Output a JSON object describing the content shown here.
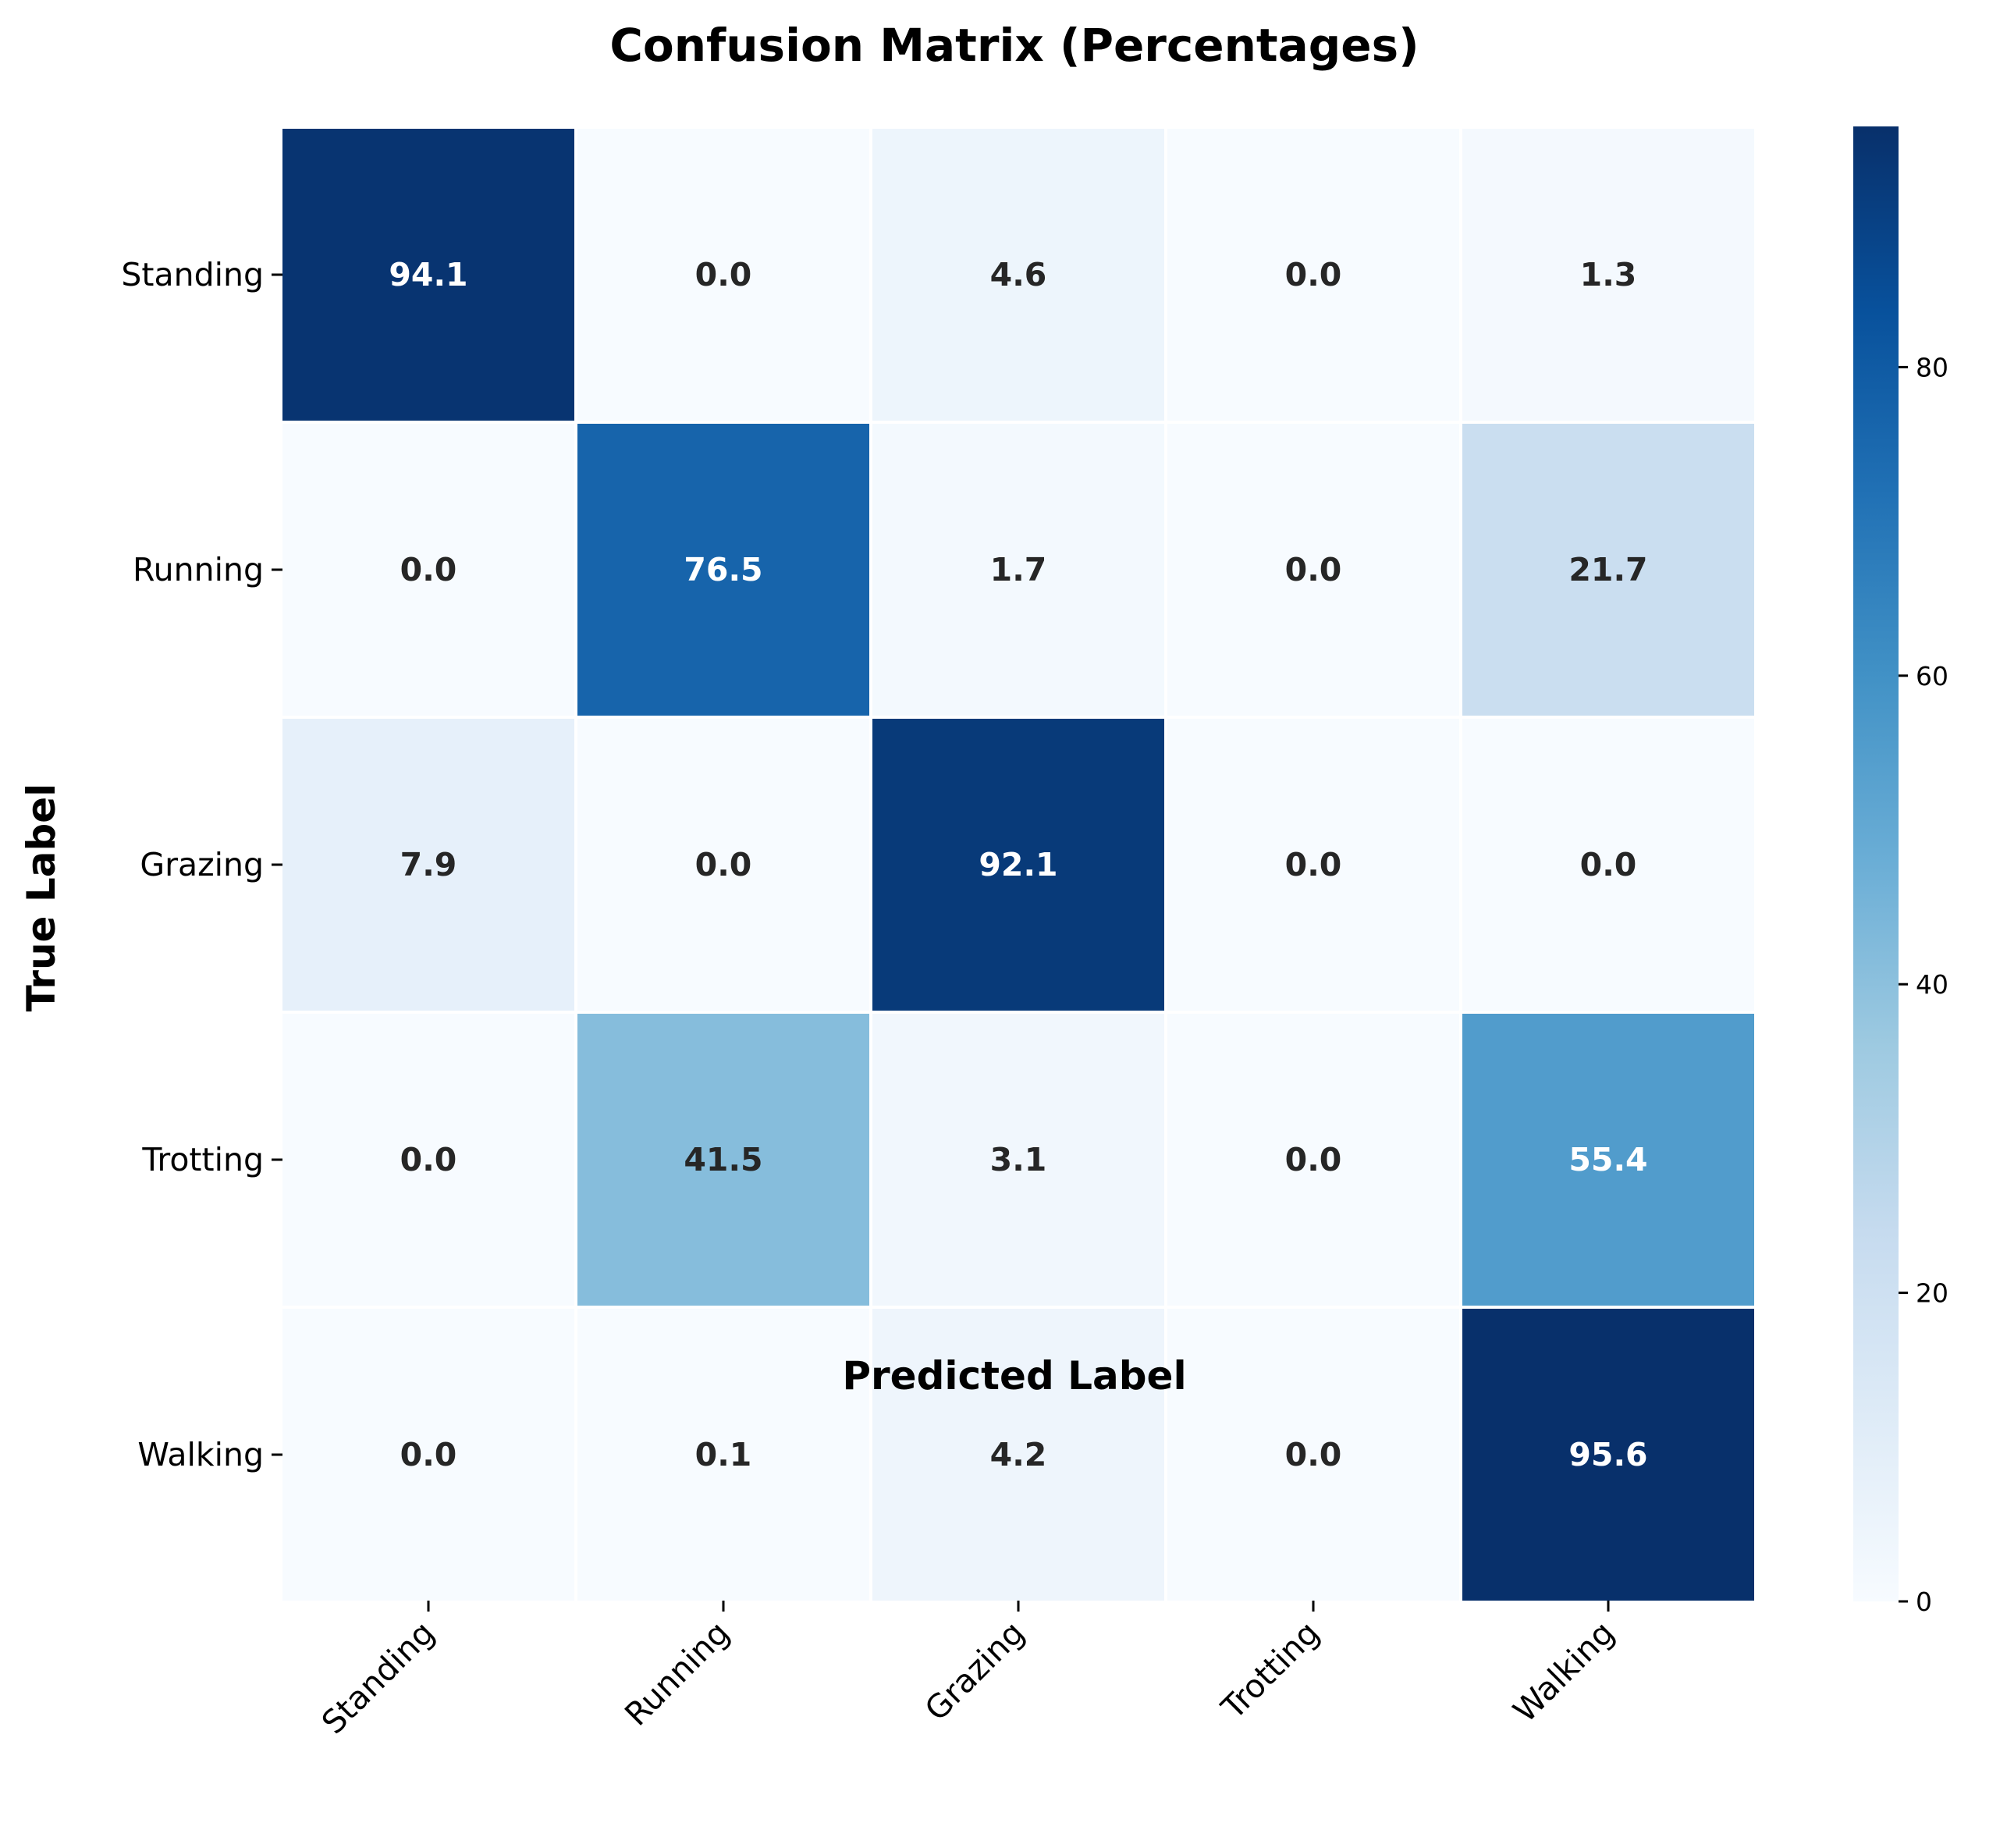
{
  "chart_data": {
    "type": "heatmap",
    "title": "Confusion Matrix (Percentages)",
    "xlabel": "Predicted Label",
    "ylabel": "True Label",
    "x_categories": [
      "Standing",
      "Running",
      "Grazing",
      "Trotting",
      "Walking"
    ],
    "y_categories": [
      "Standing",
      "Running",
      "Grazing",
      "Trotting",
      "Walking"
    ],
    "values": [
      [
        94.1,
        0.0,
        4.6,
        0.0,
        1.3
      ],
      [
        0.0,
        76.5,
        1.7,
        0.0,
        21.7
      ],
      [
        7.9,
        0.0,
        92.1,
        0.0,
        0.0
      ],
      [
        0.0,
        41.5,
        3.1,
        0.0,
        55.4
      ],
      [
        0.0,
        0.1,
        4.2,
        0.0,
        95.6
      ]
    ],
    "colormap": "Blues",
    "colorbar": {
      "vmin": 0,
      "vmax": 95.6,
      "ticks": [
        0,
        20,
        40,
        60,
        80
      ]
    },
    "colors": {
      "low": "#f7fbff",
      "high": "#08306b",
      "grid_line": "#ffffff"
    }
  }
}
